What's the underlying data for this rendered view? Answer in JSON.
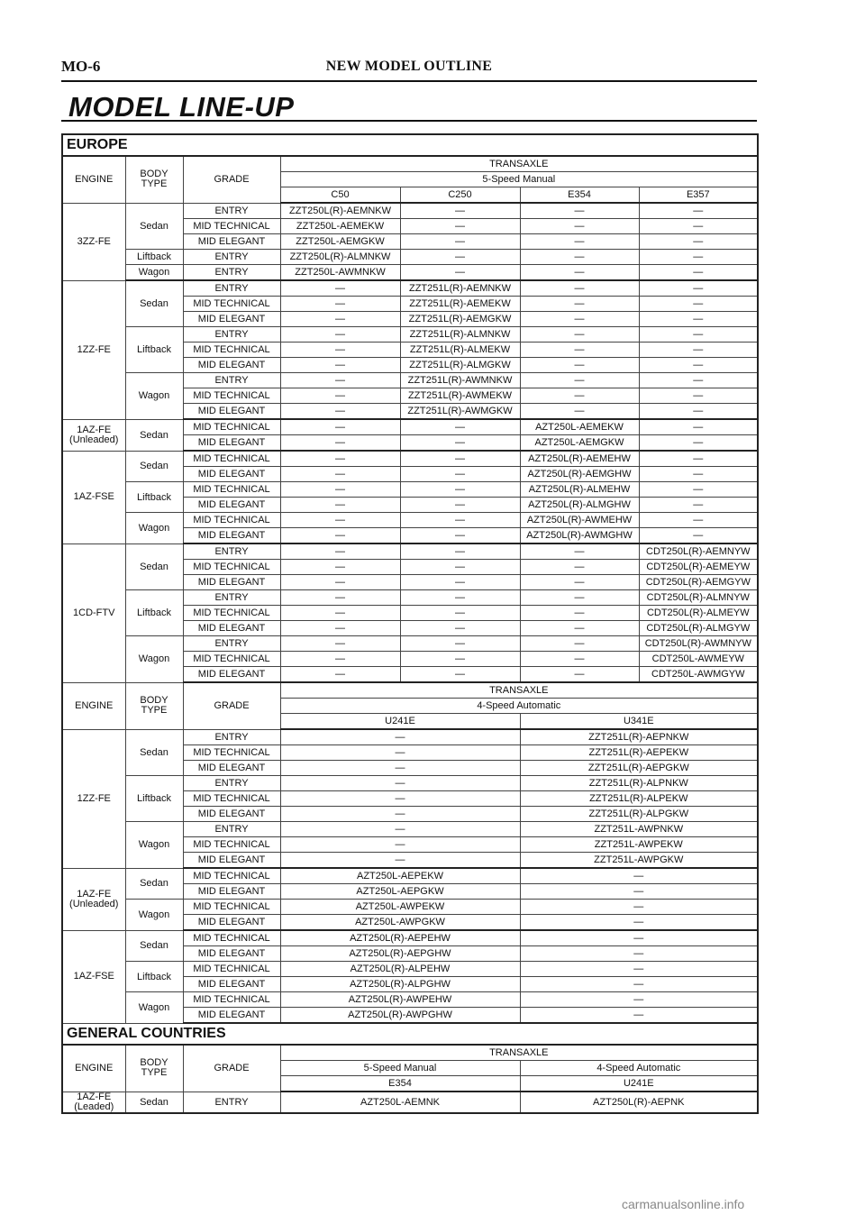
{
  "header": {
    "page_number": "MO-6",
    "section": "NEW MODEL OUTLINE"
  },
  "title": "MODEL LINE-UP",
  "dash": "—",
  "hdr": {
    "engine": "ENGINE",
    "body_type": "BODY\nTYPE",
    "grade": "GRADE",
    "transaxle": "TRANSAXLE",
    "manual5": "5-Speed Manual",
    "auto4": "4-Speed Automatic"
  },
  "europe": {
    "region": "EUROPE",
    "manual_codes": [
      "C50",
      "C250",
      "E354",
      "E357"
    ],
    "auto_codes": [
      "U241E",
      "U341E"
    ],
    "manual_groups": [
      {
        "engine": "3ZZ-FE",
        "bodies": [
          {
            "body": "Sedan",
            "rows": [
              [
                "ENTRY",
                "ZZT250L(R)-AEMNKW",
                "—",
                "—",
                "—"
              ],
              [
                "MID TECHNICAL",
                "ZZT250L-AEMEKW",
                "—",
                "—",
                "—"
              ],
              [
                "MID ELEGANT",
                "ZZT250L-AEMGKW",
                "—",
                "—",
                "—"
              ]
            ]
          },
          {
            "body": "Liftback",
            "rows": [
              [
                "ENTRY",
                "ZZT250L(R)-ALMNKW",
                "—",
                "—",
                "—"
              ]
            ]
          },
          {
            "body": "Wagon",
            "rows": [
              [
                "ENTRY",
                "ZZT250L-AWMNKW",
                "—",
                "—",
                "—"
              ]
            ]
          }
        ]
      },
      {
        "engine": "1ZZ-FE",
        "bodies": [
          {
            "body": "Sedan",
            "rows": [
              [
                "ENTRY",
                "—",
                "ZZT251L(R)-AEMNKW",
                "—",
                "—"
              ],
              [
                "MID TECHNICAL",
                "—",
                "ZZT251L(R)-AEMEKW",
                "—",
                "—"
              ],
              [
                "MID ELEGANT",
                "—",
                "ZZT251L(R)-AEMGKW",
                "—",
                "—"
              ]
            ]
          },
          {
            "body": "Liftback",
            "rows": [
              [
                "ENTRY",
                "—",
                "ZZT251L(R)-ALMNKW",
                "—",
                "—"
              ],
              [
                "MID TECHNICAL",
                "—",
                "ZZT251L(R)-ALMEKW",
                "—",
                "—"
              ],
              [
                "MID ELEGANT",
                "—",
                "ZZT251L(R)-ALMGKW",
                "—",
                "—"
              ]
            ]
          },
          {
            "body": "Wagon",
            "rows": [
              [
                "ENTRY",
                "—",
                "ZZT251L(R)-AWMNKW",
                "—",
                "—"
              ],
              [
                "MID TECHNICAL",
                "—",
                "ZZT251L(R)-AWMEKW",
                "—",
                "—"
              ],
              [
                "MID ELEGANT",
                "—",
                "ZZT251L(R)-AWMGKW",
                "—",
                "—"
              ]
            ]
          }
        ]
      },
      {
        "engine": "1AZ-FE\n(Unleaded)",
        "bodies": [
          {
            "body": "Sedan",
            "rows": [
              [
                "MID TECHNICAL",
                "—",
                "—",
                "AZT250L-AEMEKW",
                "—"
              ],
              [
                "MID ELEGANT",
                "—",
                "—",
                "AZT250L-AEMGKW",
                "—"
              ]
            ]
          }
        ]
      },
      {
        "engine": "1AZ-FSE",
        "bodies": [
          {
            "body": "Sedan",
            "rows": [
              [
                "MID TECHNICAL",
                "—",
                "—",
                "AZT250L(R)-AEMEHW",
                "—"
              ],
              [
                "MID ELEGANT",
                "—",
                "—",
                "AZT250L(R)-AEMGHW",
                "—"
              ]
            ]
          },
          {
            "body": "Liftback",
            "rows": [
              [
                "MID TECHNICAL",
                "—",
                "—",
                "AZT250L(R)-ALMEHW",
                "—"
              ],
              [
                "MID ELEGANT",
                "—",
                "—",
                "AZT250L(R)-ALMGHW",
                "—"
              ]
            ]
          },
          {
            "body": "Wagon",
            "rows": [
              [
                "MID TECHNICAL",
                "—",
                "—",
                "AZT250L(R)-AWMEHW",
                "—"
              ],
              [
                "MID ELEGANT",
                "—",
                "—",
                "AZT250L(R)-AWMGHW",
                "—"
              ]
            ]
          }
        ]
      },
      {
        "engine": "1CD-FTV",
        "bodies": [
          {
            "body": "Sedan",
            "rows": [
              [
                "ENTRY",
                "—",
                "—",
                "—",
                "CDT250L(R)-AEMNYW"
              ],
              [
                "MID TECHNICAL",
                "—",
                "—",
                "—",
                "CDT250L(R)-AEMEYW"
              ],
              [
                "MID ELEGANT",
                "—",
                "—",
                "—",
                "CDT250L(R)-AEMGYW"
              ]
            ]
          },
          {
            "body": "Liftback",
            "rows": [
              [
                "ENTRY",
                "—",
                "—",
                "—",
                "CDT250L(R)-ALMNYW"
              ],
              [
                "MID TECHNICAL",
                "—",
                "—",
                "—",
                "CDT250L(R)-ALMEYW"
              ],
              [
                "MID ELEGANT",
                "—",
                "—",
                "—",
                "CDT250L(R)-ALMGYW"
              ]
            ]
          },
          {
            "body": "Wagon",
            "rows": [
              [
                "ENTRY",
                "—",
                "—",
                "—",
                "CDT250L(R)-AWMNYW"
              ],
              [
                "MID TECHNICAL",
                "—",
                "—",
                "—",
                "CDT250L-AWMEYW"
              ],
              [
                "MID ELEGANT",
                "—",
                "—",
                "—",
                "CDT250L-AWMGYW"
              ]
            ]
          }
        ]
      }
    ],
    "auto_groups": [
      {
        "engine": "1ZZ-FE",
        "bodies": [
          {
            "body": "Sedan",
            "rows": [
              [
                "ENTRY",
                "—",
                "ZZT251L(R)-AEPNKW"
              ],
              [
                "MID TECHNICAL",
                "—",
                "ZZT251L(R)-AEPEKW"
              ],
              [
                "MID ELEGANT",
                "—",
                "ZZT251L(R)-AEPGKW"
              ]
            ]
          },
          {
            "body": "Liftback",
            "rows": [
              [
                "ENTRY",
                "—",
                "ZZT251L(R)-ALPNKW"
              ],
              [
                "MID TECHNICAL",
                "—",
                "ZZT251L(R)-ALPEKW"
              ],
              [
                "MID ELEGANT",
                "—",
                "ZZT251L(R)-ALPGKW"
              ]
            ]
          },
          {
            "body": "Wagon",
            "rows": [
              [
                "ENTRY",
                "—",
                "ZZT251L-AWPNKW"
              ],
              [
                "MID TECHNICAL",
                "—",
                "ZZT251L-AWPEKW"
              ],
              [
                "MID ELEGANT",
                "—",
                "ZZT251L-AWPGKW"
              ]
            ]
          }
        ]
      },
      {
        "engine": "1AZ-FE\n(Unleaded)",
        "bodies": [
          {
            "body": "Sedan",
            "rows": [
              [
                "MID TECHNICAL",
                "AZT250L-AEPEKW",
                "—"
              ],
              [
                "MID ELEGANT",
                "AZT250L-AEPGKW",
                "—"
              ]
            ]
          },
          {
            "body": "Wagon",
            "rows": [
              [
                "MID TECHNICAL",
                "AZT250L-AWPEKW",
                "—"
              ],
              [
                "MID ELEGANT",
                "AZT250L-AWPGKW",
                "—"
              ]
            ]
          }
        ]
      },
      {
        "engine": "1AZ-FSE",
        "bodies": [
          {
            "body": "Sedan",
            "rows": [
              [
                "MID TECHNICAL",
                "AZT250L(R)-AEPEHW",
                "—"
              ],
              [
                "MID ELEGANT",
                "AZT250L(R)-AEPGHW",
                "—"
              ]
            ]
          },
          {
            "body": "Liftback",
            "rows": [
              [
                "MID TECHNICAL",
                "AZT250L(R)-ALPEHW",
                "—"
              ],
              [
                "MID ELEGANT",
                "AZT250L(R)-ALPGHW",
                "—"
              ]
            ]
          },
          {
            "body": "Wagon",
            "rows": [
              [
                "MID TECHNICAL",
                "AZT250L(R)-AWPEHW",
                "—"
              ],
              [
                "MID ELEGANT",
                "AZT250L(R)-AWPGHW",
                "—"
              ]
            ]
          }
        ]
      }
    ]
  },
  "general": {
    "region": "GENERAL COUNTRIES",
    "codes": [
      "E354",
      "U241E"
    ],
    "row": {
      "engine": "1AZ-FE\n(Leaded)",
      "body": "Sedan",
      "grade": "ENTRY",
      "manual": "AZT250L-AEMNK",
      "auto": "AZT250L(R)-AEPNK"
    }
  },
  "footer": {
    "watermark": "carmanualsonline.info"
  }
}
